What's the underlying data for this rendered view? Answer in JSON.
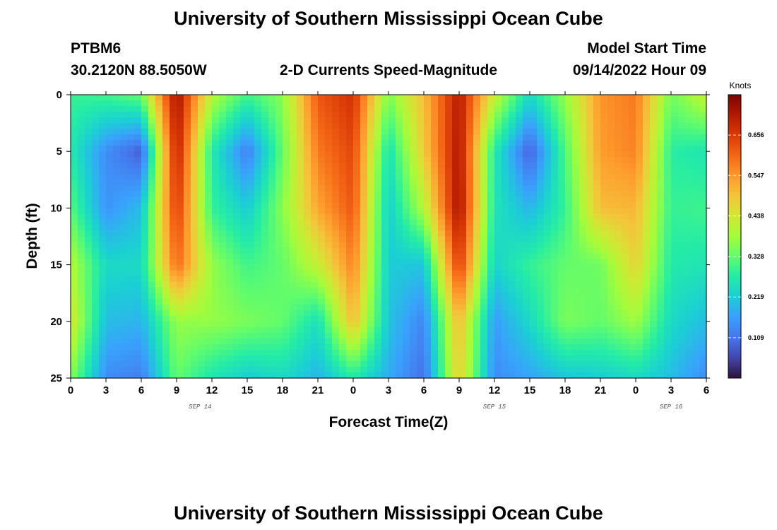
{
  "header": {
    "title": "University of Southern Mississippi Ocean Cube",
    "station": "PTBM6",
    "coords": "30.2120N  88.5050W",
    "product": "2-D Currents Speed-Magnitude",
    "model_label": "Model Start Time",
    "model_time": "09/14/2022 Hour 09"
  },
  "footer": {
    "title": "University of Southern Mississippi Ocean Cube"
  },
  "chart_data": {
    "type": "heatmap",
    "title": "2-D Currents Speed-Magnitude",
    "xlabel": "Forecast Time(Z)",
    "ylabel": "Depth (ft)",
    "x_hours": [
      0,
      3,
      6,
      9,
      12,
      15,
      18,
      21,
      24,
      27,
      30,
      33,
      36,
      39,
      42,
      45,
      48,
      51,
      54
    ],
    "x_tick_labels": [
      "0",
      "3",
      "6",
      "9",
      "12",
      "15",
      "18",
      "21",
      "0",
      "3",
      "6",
      "9",
      "12",
      "15",
      "18",
      "21",
      "0",
      "3",
      "6"
    ],
    "y_ticks": [
      0,
      5,
      10,
      15,
      20,
      25
    ],
    "y_tick_labels": [
      "0",
      "5",
      "10",
      "15",
      "20",
      "25"
    ],
    "xlim": [
      0,
      54
    ],
    "ylim": [
      0,
      25
    ],
    "date_labels": [
      {
        "text": "SEP 14",
        "hour": 11
      },
      {
        "text": "SEP 15",
        "hour": 36
      },
      {
        "text": "SEP 16",
        "hour": 51
      }
    ],
    "colorbar": {
      "unit": "Knots",
      "min": 0.0,
      "max": 0.765,
      "ticks": [
        0.109,
        0.219,
        0.328,
        0.438,
        0.547,
        0.656
      ],
      "tick_labels": [
        "0.109",
        "0.219",
        "0.328",
        "0.438",
        "0.547",
        "0.656"
      ]
    },
    "depth_profile_knots": {
      "depths_ft": [
        0,
        5,
        10,
        15,
        20,
        25
      ],
      "hours": [
        0,
        3,
        6,
        9,
        12,
        15,
        18,
        21,
        24,
        27,
        30,
        33,
        36,
        39,
        42,
        45,
        48,
        51,
        54
      ],
      "values": [
        [
          0.29,
          0.3,
          0.33,
          0.73,
          0.4,
          0.3,
          0.36,
          0.62,
          0.67,
          0.35,
          0.5,
          0.71,
          0.42,
          0.24,
          0.37,
          0.55,
          0.58,
          0.34,
          0.42
        ],
        [
          0.27,
          0.14,
          0.08,
          0.7,
          0.27,
          0.12,
          0.33,
          0.58,
          0.64,
          0.25,
          0.48,
          0.72,
          0.27,
          0.08,
          0.31,
          0.54,
          0.57,
          0.28,
          0.26
        ],
        [
          0.32,
          0.15,
          0.2,
          0.66,
          0.29,
          0.22,
          0.36,
          0.53,
          0.62,
          0.22,
          0.4,
          0.73,
          0.26,
          0.19,
          0.29,
          0.5,
          0.51,
          0.29,
          0.3
        ],
        [
          0.4,
          0.24,
          0.24,
          0.6,
          0.37,
          0.3,
          0.33,
          0.42,
          0.57,
          0.22,
          0.21,
          0.66,
          0.23,
          0.29,
          0.33,
          0.34,
          0.47,
          0.27,
          0.26
        ],
        [
          0.44,
          0.2,
          0.19,
          0.37,
          0.37,
          0.35,
          0.33,
          0.25,
          0.5,
          0.21,
          0.13,
          0.51,
          0.16,
          0.24,
          0.35,
          0.33,
          0.38,
          0.24,
          0.2
        ],
        [
          0.36,
          0.14,
          0.12,
          0.33,
          0.26,
          0.22,
          0.24,
          0.19,
          0.27,
          0.18,
          0.1,
          0.48,
          0.14,
          0.17,
          0.21,
          0.22,
          0.24,
          0.2,
          0.14
        ]
      ]
    }
  }
}
